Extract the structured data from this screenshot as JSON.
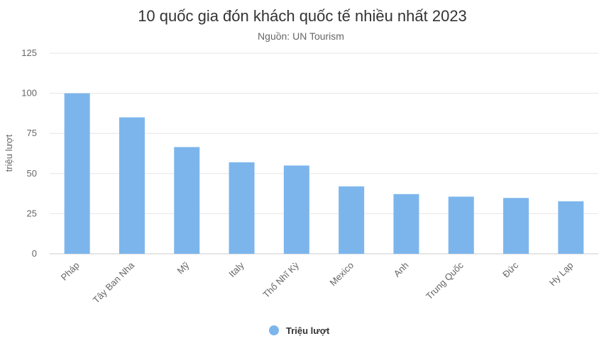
{
  "chart_data": {
    "type": "bar",
    "title": "10 quốc gia đón khách quốc tế nhiều nhất 2023",
    "subtitle": "Nguồn: UN Tourism",
    "ylabel": "triệu lượt",
    "xlabel": "",
    "ylim": [
      0,
      125
    ],
    "yticks": [
      0,
      25,
      50,
      75,
      100,
      125
    ],
    "grid": true,
    "legend_position": "bottom",
    "categories": [
      "Pháp",
      "Tây Ban Nha",
      "Mỹ",
      "Italy",
      "Thổ Nhĩ Kỳ",
      "Mexico",
      "Anh",
      "Trung Quốc",
      "Đức",
      "Hy Lạp"
    ],
    "series": [
      {
        "name": "Triệu lượt",
        "color": "#7cb5ec",
        "values": [
          100,
          85,
          66.5,
          57,
          55,
          42,
          37.2,
          35.6,
          34.8,
          32.7
        ]
      }
    ]
  }
}
